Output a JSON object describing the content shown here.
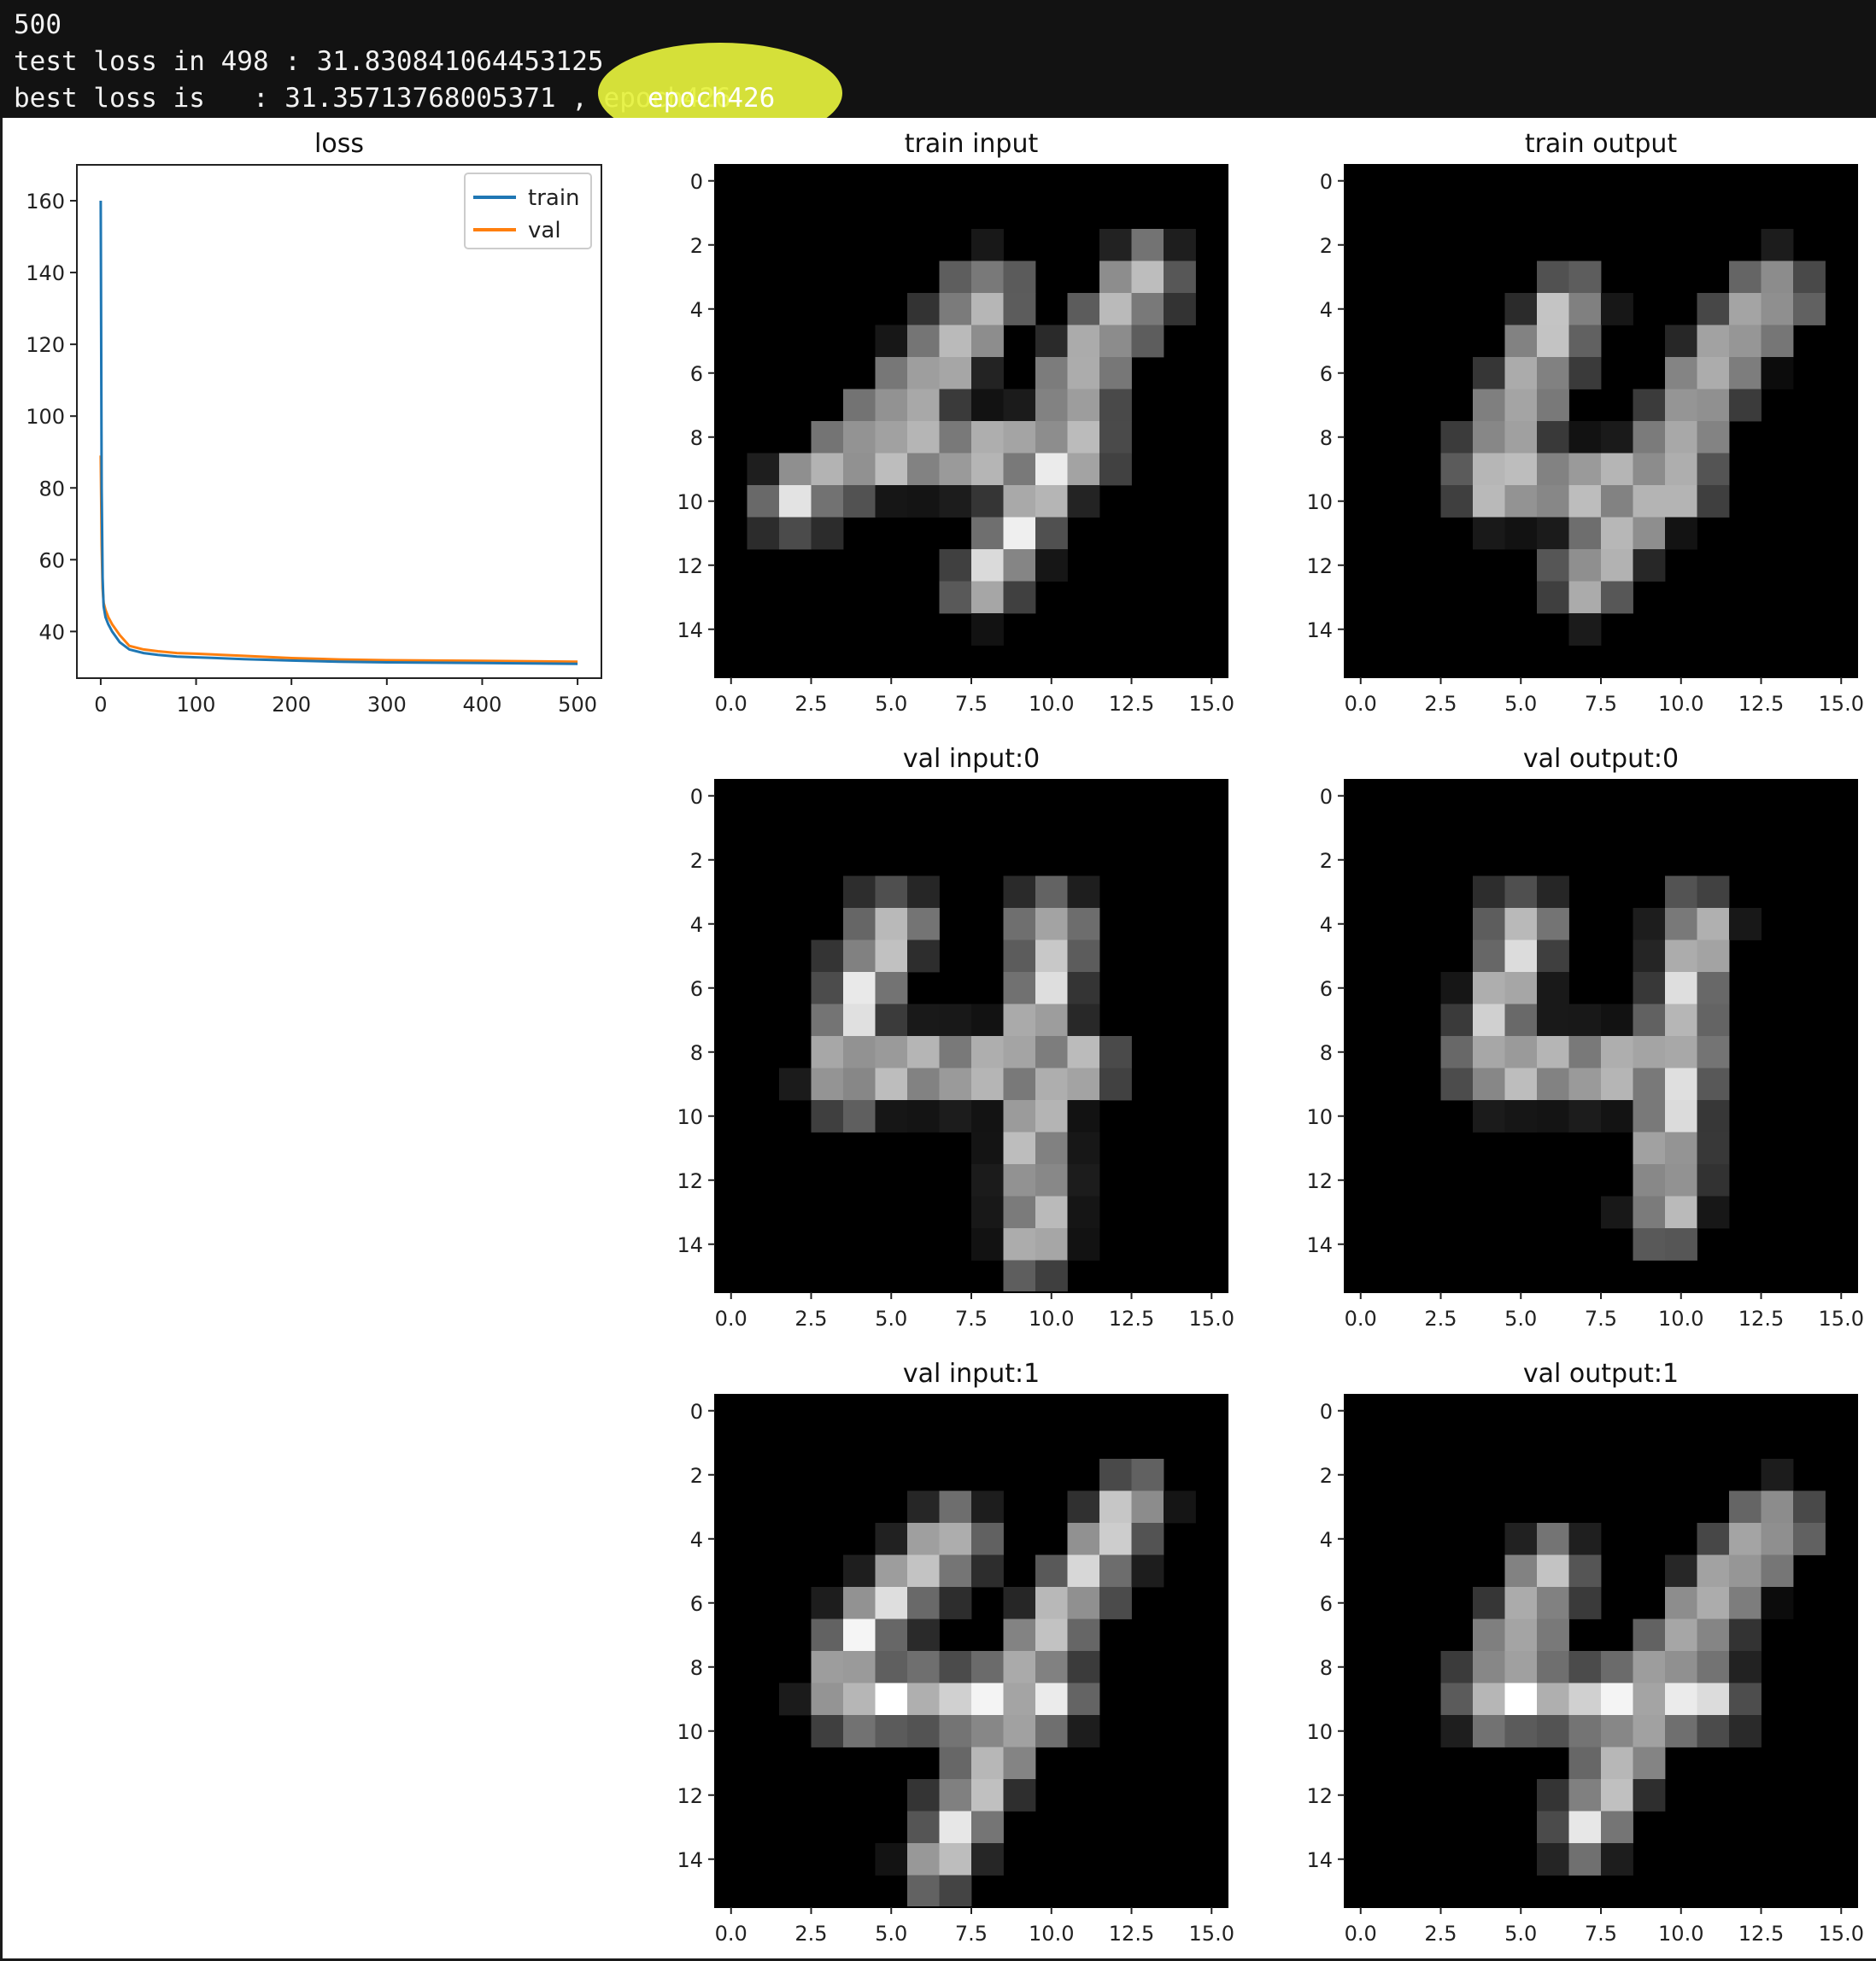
{
  "console": {
    "line1": "500",
    "line2": "test loss in 498 : 31.830841064453125",
    "line3": "best loss is   : 31.35713768005371 , epoch426",
    "highlighted_text": "epoch426",
    "highlight_color": "#e6f23d"
  },
  "chart_data": [
    {
      "type": "line",
      "title": "loss",
      "xlabel": "",
      "ylabel": "",
      "xlim": [
        -25,
        525
      ],
      "ylim": [
        27,
        170
      ],
      "xticks": [
        0,
        100,
        200,
        300,
        400,
        500
      ],
      "yticks": [
        40,
        60,
        80,
        100,
        120,
        140,
        160
      ],
      "grid": false,
      "legend": "top-right",
      "series": [
        {
          "name": "train",
          "color": "#1f77b4",
          "x": [
            0,
            1,
            2,
            3,
            5,
            8,
            12,
            20,
            30,
            45,
            60,
            80,
            100,
            150,
            200,
            250,
            300,
            350,
            400,
            450,
            500
          ],
          "y": [
            160,
            80,
            55,
            47,
            44,
            42,
            40,
            37,
            35,
            34,
            33.5,
            33,
            32.8,
            32.3,
            31.9,
            31.6,
            31.4,
            31.3,
            31.2,
            31.1,
            31.0
          ]
        },
        {
          "name": "val",
          "color": "#ff7f0e",
          "x": [
            0,
            1,
            2,
            3,
            5,
            8,
            12,
            20,
            30,
            45,
            60,
            80,
            100,
            150,
            200,
            250,
            300,
            350,
            400,
            450,
            500
          ],
          "y": [
            89,
            64,
            52,
            48,
            46,
            44,
            42,
            39,
            36,
            35,
            34.5,
            34,
            33.8,
            33.2,
            32.6,
            32.2,
            32.0,
            31.9,
            31.8,
            31.7,
            31.6
          ]
        }
      ]
    },
    {
      "type": "heatmap",
      "title": "train input",
      "xticks": [
        "0.0",
        "2.5",
        "5.0",
        "7.5",
        "10.0",
        "12.5",
        "15.0"
      ],
      "yticks": [
        "0",
        "2",
        "4",
        "6",
        "8",
        "10",
        "12",
        "14"
      ],
      "strokes": [
        [
          [
            2,
            10
          ],
          [
            4,
            8.5
          ],
          [
            7,
            5
          ],
          [
            8,
            3.5
          ]
        ],
        [
          [
            4,
            8.5
          ],
          [
            11,
            8.5
          ]
        ],
        [
          [
            13,
            3
          ],
          [
            11,
            6
          ],
          [
            10,
            9
          ],
          [
            8,
            12.5
          ]
        ]
      ]
    },
    {
      "type": "heatmap",
      "title": "train output",
      "xticks": [
        "0.0",
        "2.5",
        "5.0",
        "7.5",
        "10.0",
        "12.5",
        "15.0"
      ],
      "yticks": [
        "0",
        "2",
        "4",
        "6",
        "8",
        "10",
        "12",
        "14"
      ],
      "strokes": [
        [
          [
            4,
            9
          ],
          [
            5,
            7
          ],
          [
            6,
            5
          ],
          [
            6.5,
            4
          ]
        ],
        [
          [
            4,
            9.5
          ],
          [
            10,
            9.5
          ]
        ],
        [
          [
            13,
            3.5
          ],
          [
            11,
            6
          ],
          [
            10,
            8
          ],
          [
            7,
            12.5
          ]
        ]
      ]
    },
    {
      "type": "heatmap",
      "title": "val input:0",
      "xticks": [
        "0.0",
        "2.5",
        "5.0",
        "7.5",
        "10.0",
        "12.5",
        "15.0"
      ],
      "yticks": [
        "0",
        "2",
        "4",
        "6",
        "8",
        "10",
        "12",
        "14"
      ],
      "strokes": [
        [
          [
            5,
            4
          ],
          [
            4,
            6
          ],
          [
            3.5,
            9
          ]
        ],
        [
          [
            4,
            8.5
          ],
          [
            11,
            8.5
          ]
        ],
        [
          [
            10,
            4
          ],
          [
            9.5,
            8
          ],
          [
            9.5,
            14
          ]
        ]
      ]
    },
    {
      "type": "heatmap",
      "title": "val output:0",
      "xticks": [
        "0.0",
        "2.5",
        "5.0",
        "7.5",
        "10.0",
        "12.5",
        "15.0"
      ],
      "yticks": [
        "0",
        "2",
        "4",
        "6",
        "8",
        "10",
        "12",
        "14"
      ],
      "strokes": [
        [
          [
            5,
            4
          ],
          [
            4.5,
            6
          ],
          [
            4,
            8.5
          ]
        ],
        [
          [
            4,
            8.5
          ],
          [
            10,
            8.5
          ]
        ],
        [
          [
            10.5,
            4
          ],
          [
            10,
            8
          ],
          [
            9.5,
            13
          ]
        ]
      ]
    },
    {
      "type": "heatmap",
      "title": "val input:1",
      "xticks": [
        "0.0",
        "2.5",
        "5.0",
        "7.5",
        "10.0",
        "12.5",
        "15.0"
      ],
      "yticks": [
        "0",
        "2",
        "4",
        "6",
        "8",
        "10",
        "12",
        "14"
      ],
      "strokes": [
        [
          [
            3.5,
            9
          ],
          [
            4,
            7
          ],
          [
            6,
            5
          ],
          [
            7,
            4
          ]
        ],
        [
          [
            4,
            9
          ],
          [
            10,
            9
          ]
        ],
        [
          [
            12.5,
            3
          ],
          [
            10,
            7
          ],
          [
            8,
            11
          ],
          [
            6.5,
            14
          ]
        ]
      ]
    },
    {
      "type": "heatmap",
      "title": "val output:1",
      "xticks": [
        "0.0",
        "2.5",
        "5.0",
        "7.5",
        "10.0",
        "12.5",
        "15.0"
      ],
      "yticks": [
        "0",
        "2",
        "4",
        "6",
        "8",
        "10",
        "12",
        "14"
      ],
      "strokes": [
        [
          [
            4,
            9
          ],
          [
            5,
            7
          ],
          [
            6,
            5
          ]
        ],
        [
          [
            4,
            9
          ],
          [
            11,
            9
          ]
        ],
        [
          [
            13,
            3.5
          ],
          [
            11,
            6
          ],
          [
            9,
            9
          ],
          [
            7,
            13
          ]
        ]
      ]
    }
  ]
}
